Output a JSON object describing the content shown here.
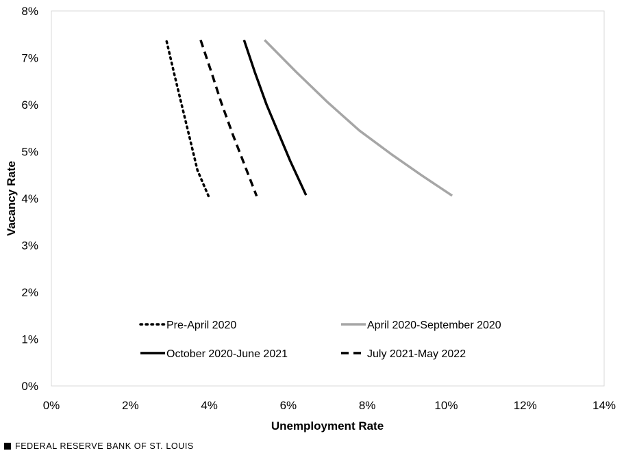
{
  "chart_data": {
    "type": "line",
    "xlabel": "Unemployment Rate",
    "ylabel": "Vacancy Rate",
    "xlim": [
      0,
      14
    ],
    "ylim": [
      0,
      8
    ],
    "x_ticks": [
      "0%",
      "2%",
      "4%",
      "6%",
      "8%",
      "10%",
      "12%",
      "14%"
    ],
    "y_ticks": [
      "0%",
      "1%",
      "2%",
      "3%",
      "4%",
      "5%",
      "6%",
      "7%",
      "8%"
    ],
    "grid": false,
    "legend": "inside-bottom",
    "series": [
      {
        "name": "Pre-April 2020",
        "style": "dotted",
        "color": "#000000",
        "points": [
          [
            2.92,
            7.35
          ],
          [
            3.1,
            6.7
          ],
          [
            3.3,
            6.0
          ],
          [
            3.5,
            5.3
          ],
          [
            3.7,
            4.6
          ],
          [
            3.98,
            4.05
          ]
        ]
      },
      {
        "name": "April 2020-September 2020",
        "style": "solid",
        "color": "#a6a6a6",
        "points": [
          [
            5.4,
            7.38
          ],
          [
            6.2,
            6.7
          ],
          [
            7.0,
            6.05
          ],
          [
            7.8,
            5.45
          ],
          [
            8.6,
            4.95
          ],
          [
            9.4,
            4.48
          ],
          [
            10.15,
            4.06
          ]
        ]
      },
      {
        "name": "October 2020-June 2021",
        "style": "solid",
        "color": "#000000",
        "points": [
          [
            4.88,
            7.38
          ],
          [
            5.15,
            6.7
          ],
          [
            5.45,
            6.0
          ],
          [
            5.75,
            5.4
          ],
          [
            6.05,
            4.8
          ],
          [
            6.45,
            4.07
          ]
        ]
      },
      {
        "name": "July 2021-May 2022",
        "style": "dashed",
        "color": "#000000",
        "points": [
          [
            3.78,
            7.38
          ],
          [
            4.05,
            6.7
          ],
          [
            4.3,
            6.05
          ],
          [
            4.6,
            5.35
          ],
          [
            4.9,
            4.7
          ],
          [
            5.2,
            4.05
          ]
        ]
      }
    ]
  },
  "source": "FEDERAL RESERVE BANK OF ST. LOUIS"
}
